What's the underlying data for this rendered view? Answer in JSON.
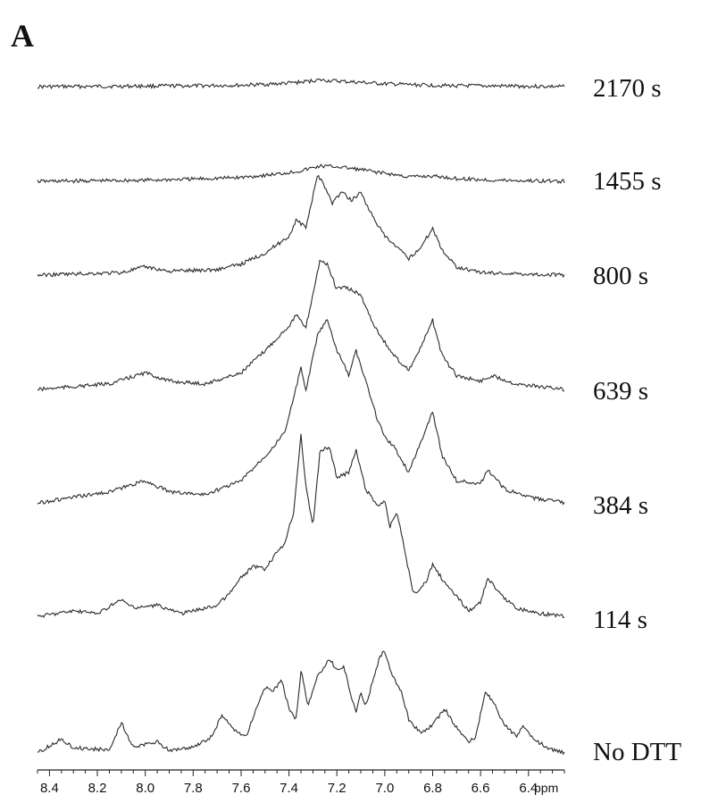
{
  "panel_label": "A",
  "chart_data": {
    "type": "line",
    "xlabel": "ppm",
    "x_reversed": true,
    "xlim": [
      8.45,
      6.25
    ],
    "x_ticks": [
      "8.4",
      "8.2",
      "8.0",
      "7.8",
      "7.6",
      "7.4",
      "7.2",
      "7.0",
      "6.8",
      "6.6",
      "6.4"
    ],
    "x_tick_values": [
      8.4,
      8.2,
      8.0,
      7.8,
      7.6,
      7.4,
      7.2,
      7.0,
      6.8,
      6.6,
      6.4
    ],
    "stacked": true,
    "series": [
      {
        "name": "2170 s",
        "points": [
          [
            8.45,
            0
          ],
          [
            8.2,
            0.1
          ],
          [
            8.0,
            0.2
          ],
          [
            7.8,
            0.3
          ],
          [
            7.6,
            0.5
          ],
          [
            7.45,
            1
          ],
          [
            7.35,
            1.6
          ],
          [
            7.28,
            2.4
          ],
          [
            7.2,
            2
          ],
          [
            7.1,
            1.5
          ],
          [
            7.0,
            1
          ],
          [
            6.85,
            0.6
          ],
          [
            6.7,
            0.3
          ],
          [
            6.5,
            0.2
          ],
          [
            6.25,
            0
          ]
        ]
      },
      {
        "name": "1455 s",
        "points": [
          [
            8.45,
            0
          ],
          [
            8.2,
            0.2
          ],
          [
            8.0,
            0.4
          ],
          [
            7.8,
            0.8
          ],
          [
            7.6,
            1.4
          ],
          [
            7.45,
            2.6
          ],
          [
            7.35,
            3.8
          ],
          [
            7.27,
            5.5
          ],
          [
            7.2,
            5.3
          ],
          [
            7.1,
            4.2
          ],
          [
            7.0,
            2.9
          ],
          [
            6.9,
            1.6
          ],
          [
            6.8,
            1.9
          ],
          [
            6.7,
            1
          ],
          [
            6.55,
            0.4
          ],
          [
            6.25,
            0
          ]
        ]
      },
      {
        "name": "800 s",
        "points": [
          [
            8.45,
            0
          ],
          [
            8.3,
            0.4
          ],
          [
            8.1,
            0.9
          ],
          [
            8.0,
            3
          ],
          [
            7.9,
            1.4
          ],
          [
            7.7,
            2
          ],
          [
            7.6,
            4
          ],
          [
            7.5,
            8
          ],
          [
            7.4,
            14
          ],
          [
            7.37,
            20
          ],
          [
            7.33,
            17
          ],
          [
            7.28,
            36
          ],
          [
            7.26,
            34
          ],
          [
            7.22,
            26
          ],
          [
            7.18,
            30
          ],
          [
            7.14,
            27
          ],
          [
            7.1,
            30
          ],
          [
            7.05,
            21
          ],
          [
            7.0,
            14
          ],
          [
            6.95,
            10
          ],
          [
            6.9,
            6
          ],
          [
            6.85,
            10
          ],
          [
            6.8,
            17
          ],
          [
            6.76,
            9
          ],
          [
            6.7,
            3
          ],
          [
            6.6,
            1
          ],
          [
            6.45,
            0.5
          ],
          [
            6.25,
            0
          ]
        ]
      },
      {
        "name": "639 s",
        "points": [
          [
            8.45,
            0
          ],
          [
            8.3,
            1
          ],
          [
            8.15,
            2
          ],
          [
            8.0,
            6
          ],
          [
            7.9,
            3
          ],
          [
            7.75,
            2
          ],
          [
            7.6,
            6
          ],
          [
            7.5,
            14
          ],
          [
            7.4,
            23
          ],
          [
            7.37,
            27
          ],
          [
            7.33,
            22
          ],
          [
            7.27,
            47
          ],
          [
            7.24,
            45
          ],
          [
            7.2,
            36
          ],
          [
            7.18,
            37
          ],
          [
            7.14,
            36
          ],
          [
            7.1,
            34
          ],
          [
            7.05,
            24
          ],
          [
            7.0,
            17
          ],
          [
            6.96,
            12
          ],
          [
            6.9,
            7
          ],
          [
            6.85,
            15
          ],
          [
            6.8,
            25
          ],
          [
            6.76,
            12
          ],
          [
            6.7,
            5
          ],
          [
            6.6,
            3
          ],
          [
            6.55,
            5
          ],
          [
            6.45,
            2
          ],
          [
            6.25,
            0
          ]
        ]
      },
      {
        "name": "384 s",
        "points": [
          [
            8.45,
            0
          ],
          [
            8.3,
            2
          ],
          [
            8.15,
            4
          ],
          [
            8.0,
            8
          ],
          [
            7.9,
            4
          ],
          [
            7.75,
            3
          ],
          [
            7.6,
            8
          ],
          [
            7.5,
            17
          ],
          [
            7.45,
            22
          ],
          [
            7.42,
            25
          ],
          [
            7.38,
            38
          ],
          [
            7.35,
            49
          ],
          [
            7.33,
            40
          ],
          [
            7.28,
            61
          ],
          [
            7.24,
            66
          ],
          [
            7.2,
            55
          ],
          [
            7.15,
            46
          ],
          [
            7.12,
            55
          ],
          [
            7.08,
            44
          ],
          [
            7.03,
            30
          ],
          [
            7.0,
            24
          ],
          [
            6.96,
            20
          ],
          [
            6.9,
            11
          ],
          [
            6.85,
            22
          ],
          [
            6.8,
            33
          ],
          [
            6.76,
            17
          ],
          [
            6.7,
            8
          ],
          [
            6.6,
            7
          ],
          [
            6.57,
            12
          ],
          [
            6.5,
            5
          ],
          [
            6.4,
            2
          ],
          [
            6.25,
            0
          ]
        ]
      },
      {
        "name": "114 s",
        "points": [
          [
            8.45,
            0
          ],
          [
            8.3,
            2
          ],
          [
            8.2,
            1
          ],
          [
            8.1,
            6
          ],
          [
            8.05,
            3
          ],
          [
            7.95,
            4
          ],
          [
            7.85,
            1
          ],
          [
            7.7,
            4
          ],
          [
            7.65,
            8
          ],
          [
            7.6,
            14
          ],
          [
            7.55,
            18
          ],
          [
            7.5,
            17
          ],
          [
            7.45,
            23
          ],
          [
            7.42,
            26
          ],
          [
            7.38,
            38
          ],
          [
            7.35,
            66
          ],
          [
            7.33,
            47
          ],
          [
            7.3,
            33
          ],
          [
            7.27,
            60
          ],
          [
            7.23,
            61
          ],
          [
            7.2,
            50
          ],
          [
            7.15,
            52
          ],
          [
            7.12,
            60
          ],
          [
            7.08,
            46
          ],
          [
            7.03,
            40
          ],
          [
            7.0,
            42
          ],
          [
            6.98,
            32
          ],
          [
            6.95,
            38
          ],
          [
            6.92,
            25
          ],
          [
            6.88,
            8
          ],
          [
            6.83,
            12
          ],
          [
            6.8,
            19
          ],
          [
            6.75,
            12
          ],
          [
            6.7,
            7
          ],
          [
            6.65,
            2
          ],
          [
            6.6,
            5
          ],
          [
            6.57,
            14
          ],
          [
            6.52,
            8
          ],
          [
            6.45,
            3
          ],
          [
            6.35,
            1
          ],
          [
            6.25,
            0
          ]
        ]
      },
      {
        "name": "No DTT",
        "points": [
          [
            8.45,
            0
          ],
          [
            8.35,
            5
          ],
          [
            8.3,
            2
          ],
          [
            8.15,
            1
          ],
          [
            8.1,
            11
          ],
          [
            8.05,
            2
          ],
          [
            7.95,
            4
          ],
          [
            7.9,
            1
          ],
          [
            7.8,
            2
          ],
          [
            7.72,
            6
          ],
          [
            7.68,
            14
          ],
          [
            7.63,
            8
          ],
          [
            7.58,
            6
          ],
          [
            7.5,
            24
          ],
          [
            7.47,
            22
          ],
          [
            7.43,
            26
          ],
          [
            7.4,
            16
          ],
          [
            7.37,
            12
          ],
          [
            7.35,
            30
          ],
          [
            7.32,
            17
          ],
          [
            7.28,
            28
          ],
          [
            7.23,
            34
          ],
          [
            7.2,
            30
          ],
          [
            7.17,
            31
          ],
          [
            7.12,
            14
          ],
          [
            7.1,
            22
          ],
          [
            7.08,
            17
          ],
          [
            7.02,
            35
          ],
          [
            7.0,
            37
          ],
          [
            6.97,
            28
          ],
          [
            6.93,
            22
          ],
          [
            6.9,
            12
          ],
          [
            6.85,
            7
          ],
          [
            6.8,
            10
          ],
          [
            6.75,
            16
          ],
          [
            6.7,
            9
          ],
          [
            6.65,
            4
          ],
          [
            6.62,
            6
          ],
          [
            6.58,
            22
          ],
          [
            6.55,
            19
          ],
          [
            6.5,
            10
          ],
          [
            6.45,
            6
          ],
          [
            6.42,
            10
          ],
          [
            6.38,
            5
          ],
          [
            6.3,
            1
          ],
          [
            6.25,
            0
          ]
        ]
      }
    ]
  }
}
